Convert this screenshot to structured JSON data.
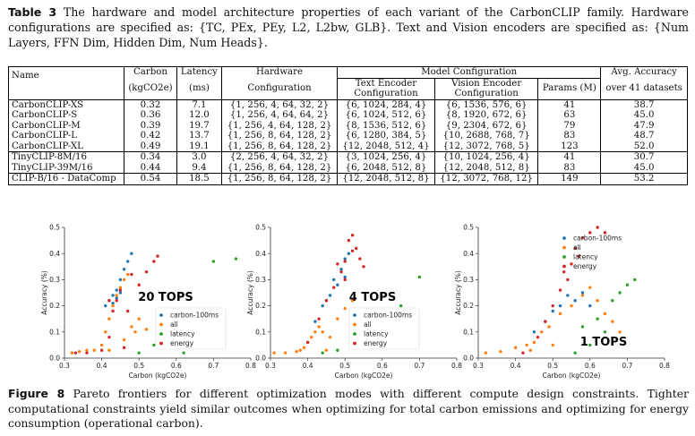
{
  "table": {
    "label": "Table 3",
    "caption": "The hardware and model architecture properties of each variant of the CarbonCLIP family. Hardware configurations are specified as: {TC, PEx, PEy, L2, L2bw, GLB}. Text and Vision encoders are specified as: {Num Layers, FFN Dim, Hidden Dim, Num Heads}.",
    "headers": {
      "name": "Name",
      "carbon": "Carbon",
      "carbon_unit": "(kgCO2e)",
      "latency": "Latency",
      "latency_unit": "(ms)",
      "hw": "Hardware",
      "hw2": "Configuration",
      "model_config": "Model Configuration",
      "text_enc": "Text Encoder",
      "text_enc2": "Configuration",
      "vision_enc": "Vision Encoder",
      "vision_enc2": "Configuration",
      "params": "Params (M)",
      "acc": "Avg. Accuracy",
      "acc2": "over 41 datasets"
    },
    "group1": [
      {
        "name": "CarbonCLIP-XS",
        "carbon": "0.32",
        "latency": "7.1",
        "hw": "{1, 256, 4, 64, 32, 2}",
        "text": "{6, 1024, 284, 4}",
        "vision": "{6, 1536, 576, 6}",
        "params": "41",
        "acc": "38.7"
      },
      {
        "name": "CarbonCLIP-S",
        "carbon": "0.36",
        "latency": "12.0",
        "hw": "{1, 256, 4, 64, 64, 2}",
        "text": "{6, 1024, 512, 6}",
        "vision": "{8, 1920, 672, 6}",
        "params": "63",
        "acc": "45.0"
      },
      {
        "name": "CarbonCLIP-M",
        "carbon": "0.39",
        "latency": "19.7",
        "hw": "{1, 256, 4, 64, 128, 2}",
        "text": "{8, 1536, 512, 6}",
        "vision": "{9, 2304, 672, 6}",
        "params": "79",
        "acc": "47.9"
      },
      {
        "name": "CarbonCLIP-L",
        "carbon": "0.42",
        "latency": "13.7",
        "hw": "{1, 256, 8, 64, 128, 2}",
        "text": "{6, 1280, 384, 5}",
        "vision": "{10, 2688, 768, 7}",
        "params": "83",
        "acc": "48.7"
      },
      {
        "name": "CarbonCLIP-XL",
        "carbon": "0.49",
        "latency": "19.1",
        "hw": "{1, 256, 8, 64, 128, 2}",
        "text": "{12, 2048, 512, 4}",
        "vision": "{12, 3072, 768, 5}",
        "params": "123",
        "acc": "52.0"
      }
    ],
    "group2": [
      {
        "name": "TinyCLIP-8M/16",
        "carbon": "0.34",
        "latency": "3.0",
        "hw": "{2, 256, 4, 64, 32, 2}",
        "text": "{3, 1024, 256, 4}",
        "vision": "{10, 1024, 256, 4}",
        "params": "41",
        "acc": "30.7"
      },
      {
        "name": "TinyCLIP-39M/16",
        "carbon": "0.44",
        "latency": "9.4",
        "hw": "{1, 256, 8, 64, 128, 2}",
        "text": "{6, 2048, 512, 8}",
        "vision": "{12, 2048, 512, 8}",
        "params": "83",
        "acc": "45.0"
      }
    ],
    "group3": [
      {
        "name": "CLIP-B/16 - DataComp",
        "carbon": "0.54",
        "latency": "18.5",
        "hw": "{1, 256, 8, 64, 128, 2}",
        "text": "{12, 2048, 512, 8}",
        "vision": "{12, 3072, 768, 12}",
        "params": "149",
        "acc": "53.2"
      }
    ]
  },
  "figure": {
    "label": "Figure 8",
    "caption": "Pareto frontiers for different optimization modes with different compute design constraints. Tighter computational constraints yield similar outcomes when optimizing for total carbon emissions and optimizing for energy consumption (operational carbon)."
  },
  "colors": {
    "carbon-100ms": "#1f77b4",
    "all": "#ff7f0e",
    "latency": "#2ca02c",
    "energy": "#d62728"
  },
  "chart_data": [
    {
      "type": "scatter",
      "annotation": "20 TOPS",
      "xlabel": "Carbon (kgCO2e)",
      "ylabel": "Accuracy (%)",
      "xlim": [
        0.3,
        0.8
      ],
      "ylim": [
        0.0,
        0.5
      ],
      "xticks": [
        "0.3",
        "0.4",
        "0.5",
        "0.6",
        "0.7",
        "0.8"
      ],
      "yticks": [
        "0.0",
        "0.1",
        "0.2",
        "0.3",
        "0.4",
        "0.5"
      ],
      "legend": [
        "carbon-100ms",
        "all",
        "latency",
        "energy"
      ],
      "legend_loc": "lower-right",
      "series": [
        {
          "name": "carbon-100ms",
          "points": [
            [
              0.41,
              0.2
            ],
            [
              0.42,
              0.22
            ],
            [
              0.43,
              0.24
            ],
            [
              0.44,
              0.26
            ],
            [
              0.45,
              0.3
            ],
            [
              0.46,
              0.34
            ],
            [
              0.47,
              0.37
            ],
            [
              0.48,
              0.4
            ],
            [
              0.43,
              0.21
            ],
            [
              0.44,
              0.23
            ],
            [
              0.45,
              0.25
            ]
          ]
        },
        {
          "name": "all",
          "points": [
            [
              0.32,
              0.02
            ],
            [
              0.34,
              0.025
            ],
            [
              0.36,
              0.03
            ],
            [
              0.38,
              0.03
            ],
            [
              0.4,
              0.05
            ],
            [
              0.41,
              0.1
            ],
            [
              0.42,
              0.15
            ],
            [
              0.43,
              0.2
            ],
            [
              0.44,
              0.24
            ],
            [
              0.45,
              0.27
            ],
            [
              0.46,
              0.3
            ],
            [
              0.47,
              0.32
            ],
            [
              0.48,
              0.12
            ],
            [
              0.5,
              0.15
            ],
            [
              0.52,
              0.11
            ],
            [
              0.42,
              0.03
            ],
            [
              0.46,
              0.07
            ],
            [
              0.49,
              0.1
            ]
          ]
        },
        {
          "name": "latency",
          "points": [
            [
              0.5,
              0.02
            ],
            [
              0.54,
              0.05
            ],
            [
              0.56,
              0.08
            ],
            [
              0.62,
              0.02
            ],
            [
              0.7,
              0.37
            ],
            [
              0.76,
              0.38
            ]
          ]
        },
        {
          "name": "energy",
          "points": [
            [
              0.33,
              0.02
            ],
            [
              0.36,
              0.02
            ],
            [
              0.4,
              0.03
            ],
            [
              0.42,
              0.08
            ],
            [
              0.43,
              0.18
            ],
            [
              0.44,
              0.22
            ],
            [
              0.45,
              0.26
            ],
            [
              0.47,
              0.18
            ],
            [
              0.5,
              0.28
            ],
            [
              0.52,
              0.33
            ],
            [
              0.54,
              0.37
            ],
            [
              0.55,
              0.39
            ],
            [
              0.48,
              0.32
            ],
            [
              0.42,
              0.22
            ],
            [
              0.46,
              0.04
            ]
          ]
        }
      ]
    },
    {
      "type": "scatter",
      "annotation": "4 TOPS",
      "xlabel": "Carbon (kgCO2e)",
      "ylabel": "Accuracy (%)",
      "xlim": [
        0.3,
        0.8
      ],
      "ylim": [
        0.0,
        0.5
      ],
      "xticks": [
        "0.3",
        "0.4",
        "0.5",
        "0.6",
        "0.7",
        "0.8"
      ],
      "yticks": [
        "0.0",
        "0.1",
        "0.2",
        "0.3",
        "0.4",
        "0.5"
      ],
      "legend": [
        "carbon-100ms",
        "all",
        "latency",
        "energy"
      ],
      "legend_loc": "lower-right",
      "series": [
        {
          "name": "carbon-100ms",
          "points": [
            [
              0.42,
              0.14
            ],
            [
              0.44,
              0.2
            ],
            [
              0.46,
              0.24
            ],
            [
              0.48,
              0.28
            ],
            [
              0.49,
              0.34
            ],
            [
              0.5,
              0.38
            ],
            [
              0.51,
              0.4
            ],
            [
              0.45,
              0.22
            ],
            [
              0.47,
              0.3
            ],
            [
              0.5,
              0.31
            ]
          ]
        },
        {
          "name": "all",
          "points": [
            [
              0.31,
              0.02
            ],
            [
              0.34,
              0.02
            ],
            [
              0.37,
              0.025
            ],
            [
              0.39,
              0.04
            ],
            [
              0.4,
              0.06
            ],
            [
              0.41,
              0.08
            ],
            [
              0.42,
              0.1
            ],
            [
              0.43,
              0.12
            ],
            [
              0.44,
              0.1
            ],
            [
              0.46,
              0.08
            ],
            [
              0.48,
              0.15
            ],
            [
              0.5,
              0.19
            ],
            [
              0.52,
              0.22
            ],
            [
              0.54,
              0.17
            ],
            [
              0.56,
              0.14
            ],
            [
              0.58,
              0.11
            ],
            [
              0.6,
              0.15
            ],
            [
              0.62,
              0.05
            ],
            [
              0.45,
              0.03
            ],
            [
              0.38,
              0.03
            ]
          ]
        },
        {
          "name": "latency",
          "points": [
            [
              0.44,
              0.02
            ],
            [
              0.48,
              0.03
            ],
            [
              0.52,
              0.05
            ],
            [
              0.55,
              0.08
            ],
            [
              0.58,
              0.15
            ],
            [
              0.6,
              0.12
            ],
            [
              0.65,
              0.2
            ],
            [
              0.7,
              0.31
            ]
          ]
        },
        {
          "name": "energy",
          "points": [
            [
              0.4,
              0.06
            ],
            [
              0.43,
              0.15
            ],
            [
              0.45,
              0.22
            ],
            [
              0.47,
              0.27
            ],
            [
              0.49,
              0.33
            ],
            [
              0.5,
              0.37
            ],
            [
              0.51,
              0.45
            ],
            [
              0.52,
              0.47
            ],
            [
              0.53,
              0.42
            ],
            [
              0.54,
              0.38
            ],
            [
              0.5,
              0.3
            ],
            [
              0.55,
              0.35
            ],
            [
              0.48,
              0.36
            ],
            [
              0.52,
              0.41
            ]
          ]
        }
      ]
    },
    {
      "type": "scatter",
      "annotation": "1 TOPS",
      "xlabel": "Carbon (kgCO2e)",
      "ylabel": "Accuracy (%)",
      "xlim": [
        0.3,
        0.8
      ],
      "ylim": [
        0.0,
        0.5
      ],
      "xticks": [
        "0.3",
        "0.4",
        "0.5",
        "0.6",
        "0.7",
        "0.8"
      ],
      "yticks": [
        "0.0",
        "0.1",
        "0.2",
        "0.3",
        "0.4",
        "0.5"
      ],
      "legend": [
        "carbon-100ms",
        "all",
        "latency",
        "energy"
      ],
      "legend_loc": "top-right",
      "series": [
        {
          "name": "carbon-100ms",
          "points": [
            [
              0.48,
              0.14
            ],
            [
              0.5,
              0.18
            ],
            [
              0.52,
              0.2
            ],
            [
              0.54,
              0.24
            ],
            [
              0.56,
              0.22
            ],
            [
              0.58,
              0.25
            ],
            [
              0.6,
              0.2
            ],
            [
              0.45,
              0.1
            ]
          ]
        },
        {
          "name": "all",
          "points": [
            [
              0.32,
              0.02
            ],
            [
              0.36,
              0.025
            ],
            [
              0.4,
              0.04
            ],
            [
              0.43,
              0.05
            ],
            [
              0.45,
              0.06
            ],
            [
              0.47,
              0.1
            ],
            [
              0.49,
              0.12
            ],
            [
              0.52,
              0.17
            ],
            [
              0.55,
              0.2
            ],
            [
              0.58,
              0.24
            ],
            [
              0.6,
              0.27
            ],
            [
              0.62,
              0.22
            ],
            [
              0.64,
              0.17
            ],
            [
              0.66,
              0.14
            ],
            [
              0.68,
              0.1
            ],
            [
              0.44,
              0.03
            ],
            [
              0.5,
              0.05
            ]
          ]
        },
        {
          "name": "latency",
          "points": [
            [
              0.56,
              0.02
            ],
            [
              0.6,
              0.05
            ],
            [
              0.62,
              0.15
            ],
            [
              0.64,
              0.1
            ],
            [
              0.66,
              0.22
            ],
            [
              0.68,
              0.25
            ],
            [
              0.7,
              0.28
            ],
            [
              0.72,
              0.3
            ],
            [
              0.58,
              0.12
            ]
          ]
        },
        {
          "name": "energy",
          "points": [
            [
              0.42,
              0.02
            ],
            [
              0.46,
              0.08
            ],
            [
              0.48,
              0.14
            ],
            [
              0.5,
              0.2
            ],
            [
              0.52,
              0.26
            ],
            [
              0.54,
              0.3
            ],
            [
              0.55,
              0.36
            ],
            [
              0.56,
              0.42
            ],
            [
              0.58,
              0.46
            ],
            [
              0.6,
              0.48
            ],
            [
              0.62,
              0.5
            ],
            [
              0.64,
              0.48
            ],
            [
              0.53,
              0.33
            ],
            [
              0.57,
              0.39
            ]
          ]
        }
      ]
    }
  ]
}
